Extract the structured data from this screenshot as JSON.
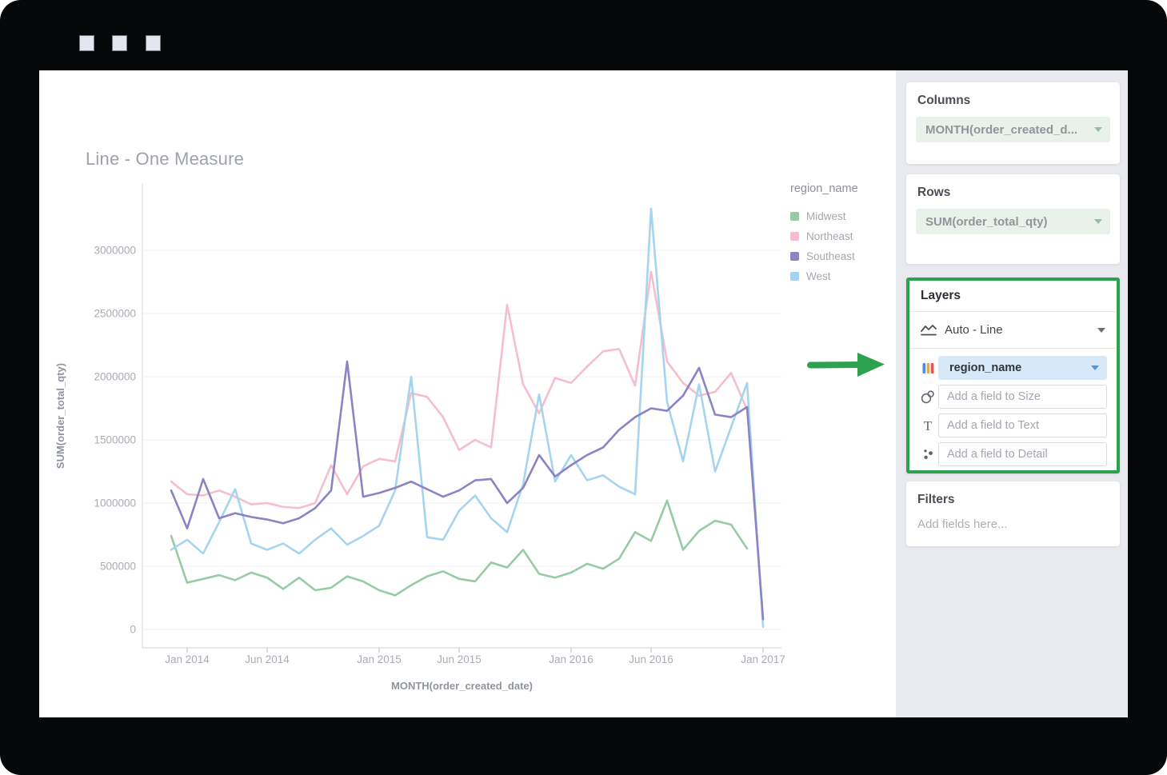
{
  "window": {
    "titlebar_button_count": 3
  },
  "chart": {
    "title": "Line - One Measure"
  },
  "chart_data": {
    "type": "line",
    "title": "Line - One Measure",
    "xlabel": "MONTH(order_created_date)",
    "ylabel": "SUM(order_total_qty)",
    "ylim": [
      0,
      3000000
    ],
    "grid": true,
    "legend_title": "region_name",
    "legend_position": "right",
    "x": [
      "Dec 2013",
      "Jan 2014",
      "Feb 2014",
      "Mar 2014",
      "Apr 2014",
      "May 2014",
      "Jun 2014",
      "Jul 2014",
      "Aug 2014",
      "Sep 2014",
      "Oct 2014",
      "Nov 2014",
      "Dec 2014",
      "Jan 2015",
      "Feb 2015",
      "Mar 2015",
      "Apr 2015",
      "May 2015",
      "Jun 2015",
      "Jul 2015",
      "Aug 2015",
      "Sep 2015",
      "Oct 2015",
      "Nov 2015",
      "Dec 2015",
      "Jan 2016",
      "Feb 2016",
      "Mar 2016",
      "Apr 2016",
      "May 2016",
      "Jun 2016",
      "Jul 2016",
      "Aug 2016",
      "Sep 2016",
      "Oct 2016",
      "Nov 2016",
      "Dec 2016",
      "Jan 2017"
    ],
    "x_ticks": [
      {
        "index": 1,
        "label": "Jan 2014"
      },
      {
        "index": 6,
        "label": "Jun 2014"
      },
      {
        "index": 13,
        "label": "Jan 2015"
      },
      {
        "index": 18,
        "label": "Jun 2015"
      },
      {
        "index": 25,
        "label": "Jan 2016"
      },
      {
        "index": 30,
        "label": "Jun 2016"
      },
      {
        "index": 37,
        "label": "Jan 2017"
      }
    ],
    "y_ticks": [
      {
        "value": 0,
        "label": "0"
      },
      {
        "value": 500000,
        "label": "500000"
      },
      {
        "value": 1000000,
        "label": "1000000"
      },
      {
        "value": 1500000,
        "label": "1500000"
      },
      {
        "value": 2000000,
        "label": "2000000"
      },
      {
        "value": 2500000,
        "label": "2500000"
      },
      {
        "value": 3000000,
        "label": "3000000"
      }
    ],
    "series": [
      {
        "name": "Midwest",
        "color": "#97CBA4",
        "values": [
          740000,
          370000,
          400000,
          430000,
          390000,
          450000,
          410000,
          320000,
          410000,
          310000,
          330000,
          420000,
          380000,
          310000,
          270000,
          350000,
          420000,
          460000,
          400000,
          380000,
          530000,
          490000,
          630000,
          440000,
          410000,
          450000,
          520000,
          480000,
          560000,
          770000,
          700000,
          1020000,
          630000,
          780000,
          860000,
          830000,
          640000,
          null
        ]
      },
      {
        "name": "Northeast",
        "color": "#F6BECD",
        "values": [
          1170000,
          1070000,
          1060000,
          1100000,
          1050000,
          990000,
          1000000,
          970000,
          960000,
          1000000,
          1300000,
          1070000,
          1290000,
          1350000,
          1330000,
          1870000,
          1840000,
          1680000,
          1420000,
          1500000,
          1440000,
          2570000,
          1940000,
          1710000,
          1990000,
          1950000,
          2080000,
          2200000,
          2220000,
          1930000,
          2830000,
          2120000,
          1950000,
          1850000,
          1880000,
          2030000,
          1740000,
          null
        ]
      },
      {
        "name": "Southeast",
        "color": "#8B83C3",
        "values": [
          1100000,
          800000,
          1190000,
          880000,
          920000,
          890000,
          870000,
          840000,
          880000,
          960000,
          1100000,
          2120000,
          1050000,
          1080000,
          1120000,
          1170000,
          1110000,
          1050000,
          1100000,
          1180000,
          1190000,
          1000000,
          1120000,
          1380000,
          1210000,
          1300000,
          1380000,
          1440000,
          1580000,
          1680000,
          1750000,
          1730000,
          1850000,
          2070000,
          1700000,
          1680000,
          1760000,
          80000
        ]
      },
      {
        "name": "West",
        "color": "#A5D4F0",
        "values": [
          630000,
          710000,
          600000,
          850000,
          1110000,
          680000,
          630000,
          680000,
          600000,
          710000,
          800000,
          670000,
          740000,
          820000,
          1100000,
          2000000,
          730000,
          710000,
          940000,
          1060000,
          880000,
          770000,
          1150000,
          1860000,
          1170000,
          1380000,
          1180000,
          1220000,
          1130000,
          1070000,
          3330000,
          1800000,
          1330000,
          1940000,
          1250000,
          1600000,
          1950000,
          20000
        ]
      }
    ]
  },
  "sidebar": {
    "columns": {
      "header": "Columns",
      "field": "MONTH(order_created_d..."
    },
    "rows": {
      "header": "Rows",
      "field": "SUM(order_total_qty)"
    },
    "layers": {
      "header": "Layers",
      "layer_type": "Auto - Line",
      "color_field": "region_name",
      "size_placeholder": "Add a field to Size",
      "text_placeholder": "Add a field to Text",
      "detail_placeholder": "Add a field to Detail"
    },
    "filters": {
      "header": "Filters",
      "placeholder": "Add fields here..."
    }
  },
  "colors": {
    "accent_green": "#2CA24F",
    "sidebar_bg": "#E9EAEF",
    "window_frame": "#060708",
    "field_pill_green_bg": "#E8F2EA",
    "layer_pill_blue_bg": "#D7E8F8",
    "caret_blue": "#4796E6",
    "axis_text": "#A9ADB4",
    "chart_title_text": "#9EA2A9"
  }
}
